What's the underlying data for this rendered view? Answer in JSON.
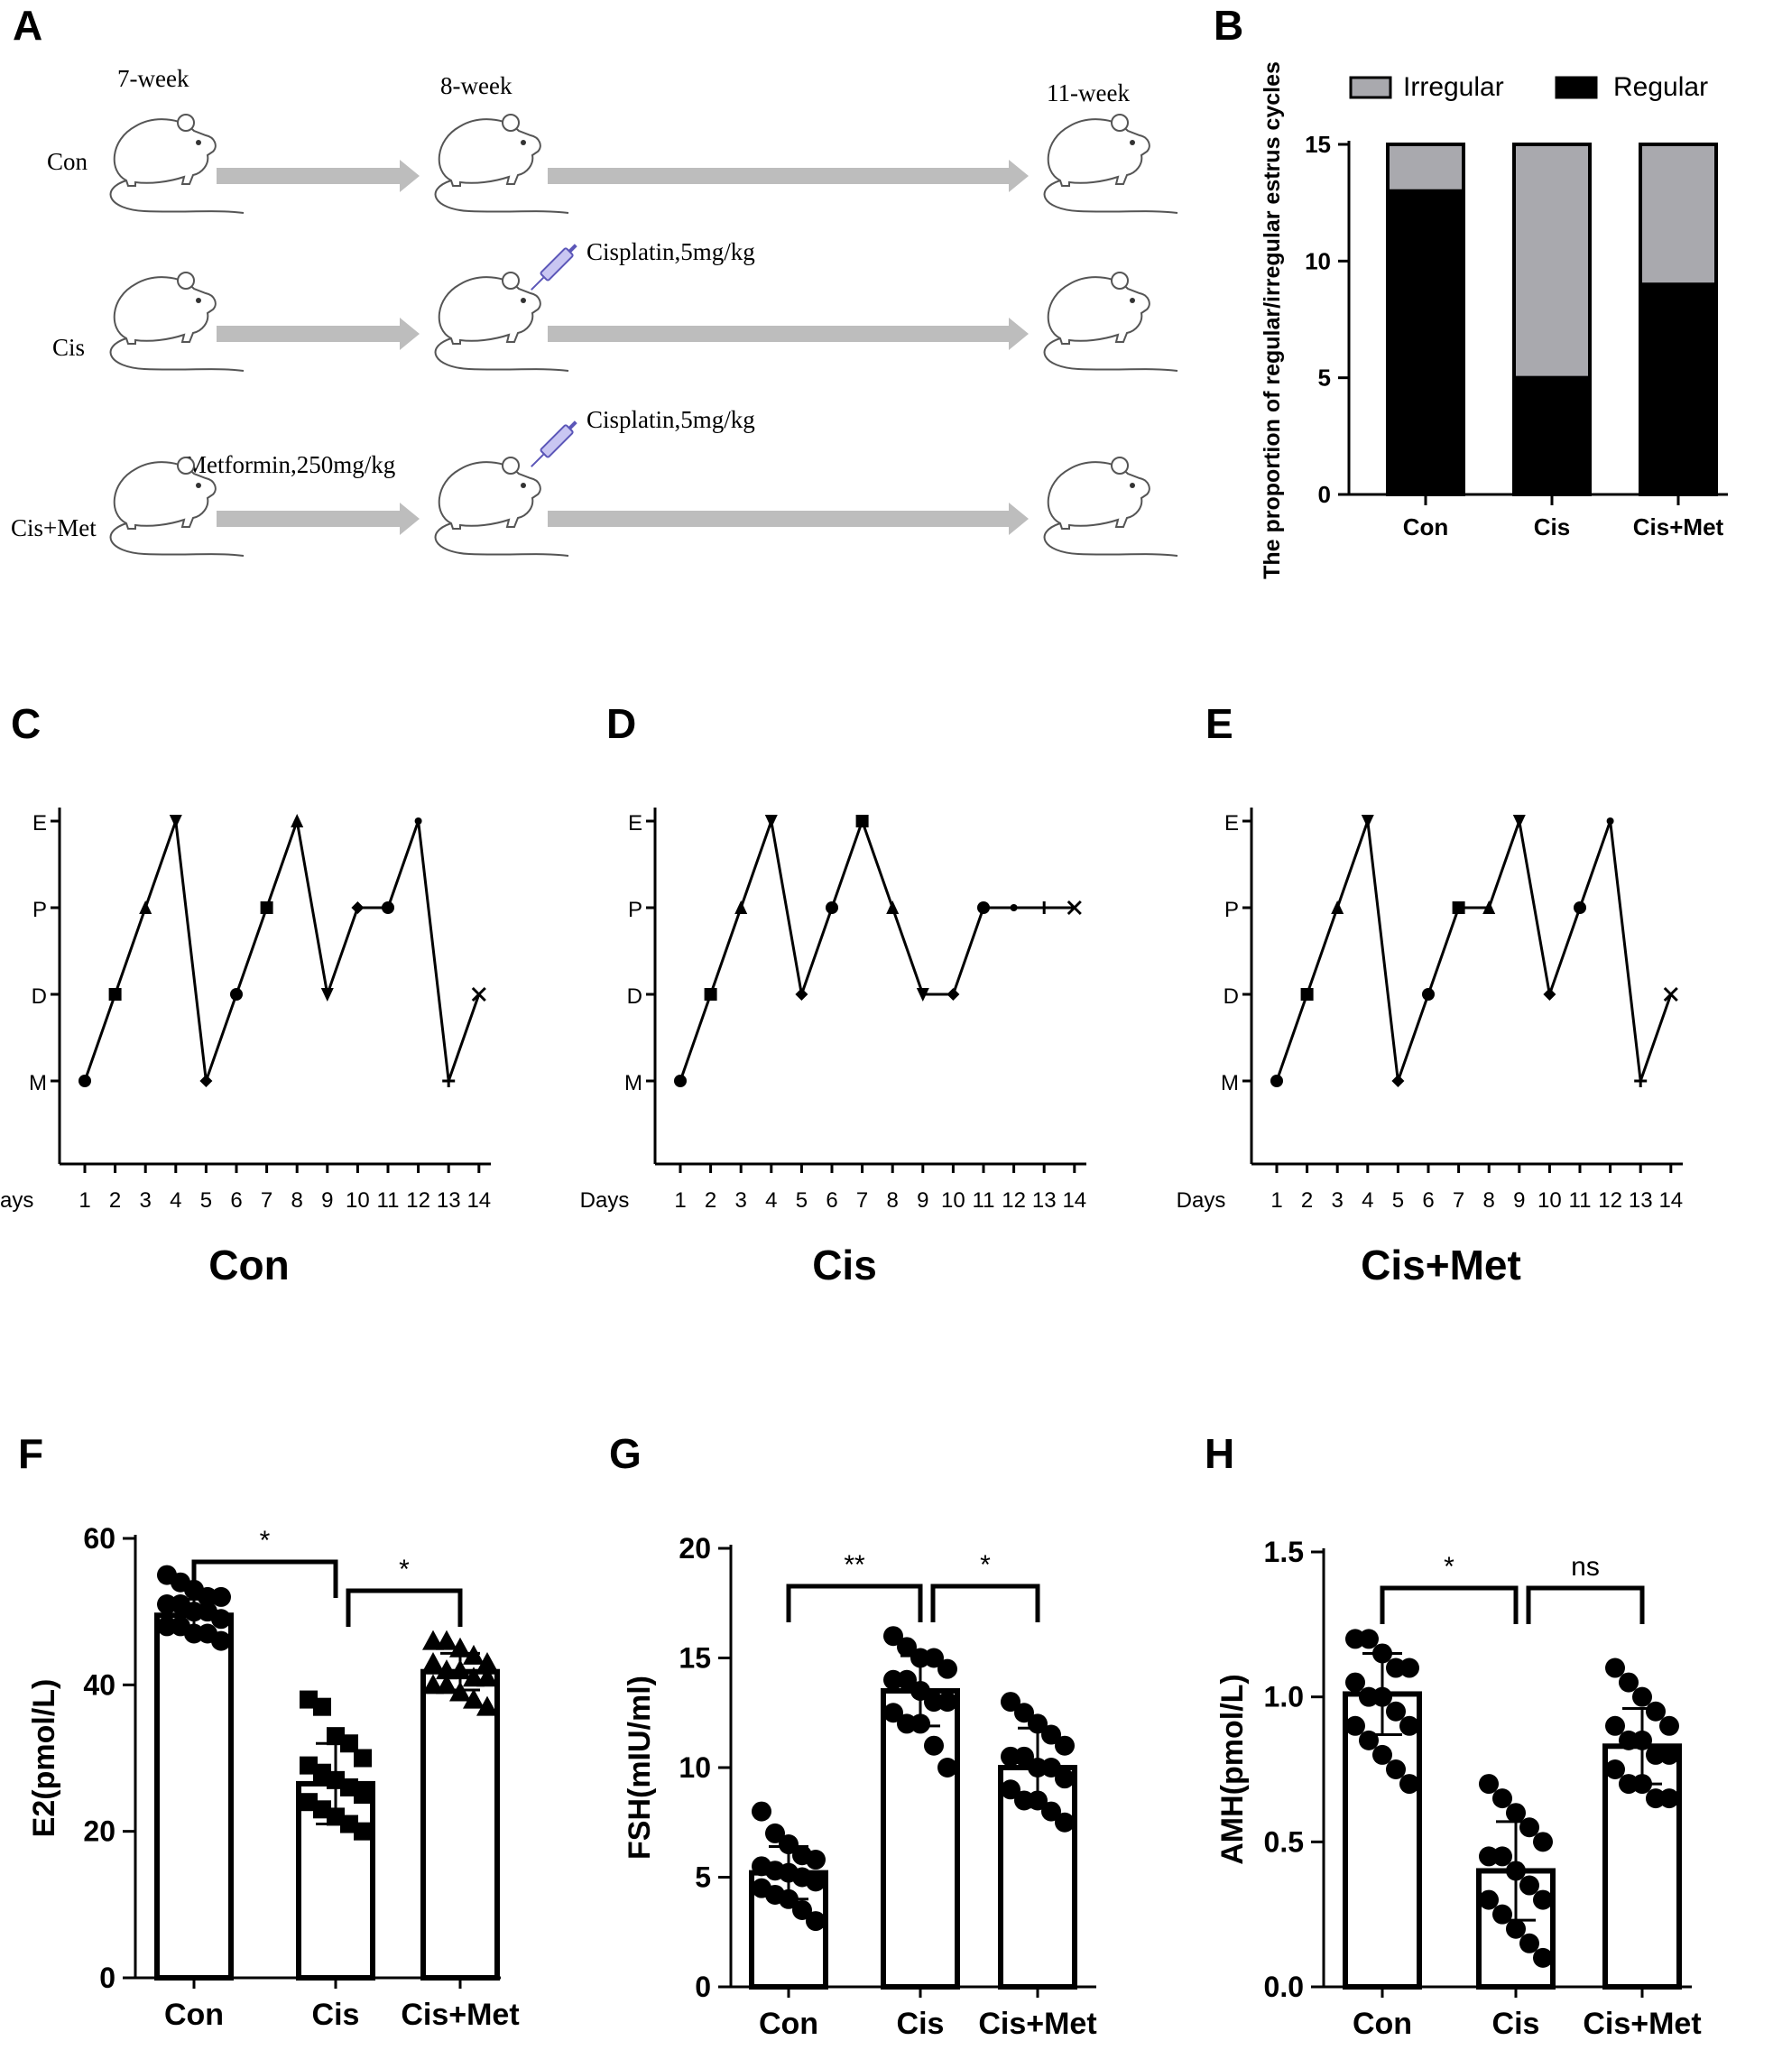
{
  "panels": {
    "A": "A",
    "B": "B",
    "C": "C",
    "D": "D",
    "E": "E",
    "F": "F",
    "G": "G",
    "H": "H"
  },
  "schematic": {
    "week_labels": [
      "7-week",
      "8-week",
      "11-week"
    ],
    "groups": [
      "Con",
      "Cis",
      "Cis+Met"
    ],
    "cisplatin_label": "Cisplatin,5mg/kg",
    "metformin_label": "Metformin,250mg/kg",
    "arrow_color": "#bdbdbd"
  },
  "chart_data": [
    {
      "id": "B",
      "type": "bar",
      "stacked": true,
      "categories": [
        "Con",
        "Cis",
        "Cis+Met"
      ],
      "series": [
        {
          "name": "Irregular",
          "color": "#a9a9ae",
          "values": [
            2,
            10,
            6
          ]
        },
        {
          "name": "Regular",
          "color": "#000000",
          "values": [
            13,
            5,
            9
          ]
        }
      ],
      "ylabel": "The proportion of regular/irregular estrus cycles",
      "ylim": [
        0,
        15
      ],
      "yticks": [
        0,
        5,
        10,
        15
      ],
      "legend": "top"
    },
    {
      "id": "C",
      "type": "line",
      "title": "Con",
      "xlabel": "Days",
      "x": [
        1,
        2,
        3,
        4,
        5,
        6,
        7,
        8,
        9,
        10,
        11,
        12,
        13,
        14
      ],
      "y": [
        0,
        1,
        2,
        3,
        0,
        1,
        2,
        3,
        1,
        2,
        2,
        3,
        0,
        1
      ],
      "yticklabels": [
        "M",
        "D",
        "P",
        "E"
      ]
    },
    {
      "id": "D",
      "type": "line",
      "title": "Cis",
      "xlabel": "Days",
      "x": [
        1,
        2,
        3,
        4,
        5,
        6,
        7,
        8,
        9,
        10,
        11,
        12,
        13,
        14
      ],
      "y": [
        0,
        1,
        2,
        3,
        1,
        2,
        3,
        2,
        1,
        1,
        2,
        2,
        2,
        2
      ],
      "yticklabels": [
        "M",
        "D",
        "P",
        "E"
      ]
    },
    {
      "id": "E",
      "type": "line",
      "title": "Cis+Met",
      "xlabel": "Days",
      "x": [
        1,
        2,
        3,
        4,
        5,
        6,
        7,
        8,
        9,
        10,
        11,
        12,
        13,
        14
      ],
      "y": [
        0,
        1,
        2,
        3,
        0,
        1,
        2,
        2,
        3,
        1,
        2,
        3,
        0,
        1
      ],
      "yticklabels": [
        "M",
        "D",
        "P",
        "E"
      ]
    },
    {
      "id": "F",
      "type": "bar",
      "categories": [
        "Con",
        "Cis",
        "Cis+Met"
      ],
      "means": [
        49.5,
        26.5,
        41.8
      ],
      "sd": [
        2.2,
        5.5,
        2.5
      ],
      "points": [
        [
          55,
          54,
          53,
          52,
          52,
          51,
          51,
          50,
          50,
          49,
          48,
          48,
          47,
          47,
          46
        ],
        [
          38,
          37,
          33,
          32,
          30,
          29,
          28,
          27,
          26,
          25,
          24,
          23,
          22,
          21,
          20
        ],
        [
          46,
          46,
          45,
          44,
          43,
          43,
          42,
          42,
          41,
          41,
          40,
          40,
          39,
          38,
          37
        ]
      ],
      "marker": [
        "circle",
        "square",
        "triangle"
      ],
      "ylabel": "E2(pmol/L)",
      "ylim": [
        0,
        60
      ],
      "yticks": [
        0,
        20,
        40,
        60
      ],
      "significance": [
        {
          "between": [
            "Con",
            "Cis"
          ],
          "label": "*"
        },
        {
          "between": [
            "Cis",
            "Cis+Met"
          ],
          "label": "*"
        }
      ]
    },
    {
      "id": "G",
      "type": "bar",
      "categories": [
        "Con",
        "Cis",
        "Cis+Met"
      ],
      "means": [
        5.2,
        13.5,
        10.0
      ],
      "sd": [
        1.2,
        1.6,
        1.8
      ],
      "points": [
        [
          8,
          7,
          6.5,
          6,
          5.8,
          5.5,
          5.3,
          5.2,
          5,
          4.8,
          4.5,
          4.2,
          4,
          3.5,
          3
        ],
        [
          16,
          15.5,
          15,
          15,
          14.5,
          14,
          14,
          13.5,
          13,
          13,
          12.5,
          12,
          12,
          11,
          10
        ],
        [
          13,
          12.5,
          12,
          11.5,
          11,
          10.5,
          10.5,
          10,
          10,
          9.5,
          9,
          8.5,
          8.5,
          8,
          7.5
        ]
      ],
      "marker": [
        "circle",
        "circle",
        "circle"
      ],
      "ylabel": "FSH(mIU/ml)",
      "ylim": [
        0,
        20
      ],
      "yticks": [
        0,
        5,
        10,
        15,
        20
      ],
      "significance": [
        {
          "between": [
            "Con",
            "Cis"
          ],
          "label": "**"
        },
        {
          "between": [
            "Cis",
            "Cis+Met"
          ],
          "label": "*"
        }
      ]
    },
    {
      "id": "H",
      "type": "bar",
      "categories": [
        "Con",
        "Cis",
        "Cis+Met"
      ],
      "means": [
        1.01,
        0.4,
        0.83
      ],
      "sd": [
        0.14,
        0.17,
        0.13
      ],
      "points": [
        [
          1.2,
          1.2,
          1.15,
          1.1,
          1.1,
          1.05,
          1.0,
          1.0,
          0.95,
          0.9,
          0.9,
          0.85,
          0.8,
          0.75,
          0.7
        ],
        [
          0.7,
          0.65,
          0.6,
          0.55,
          0.5,
          0.45,
          0.45,
          0.4,
          0.35,
          0.3,
          0.3,
          0.25,
          0.2,
          0.15,
          0.1
        ],
        [
          1.1,
          1.05,
          1.0,
          0.95,
          0.9,
          0.9,
          0.85,
          0.85,
          0.8,
          0.8,
          0.75,
          0.7,
          0.7,
          0.65,
          0.65
        ]
      ],
      "marker": [
        "circle",
        "circle",
        "circle"
      ],
      "ylabel": "AMH(pmol/L)",
      "ylim": [
        0,
        1.5
      ],
      "yticks": [
        "0.0",
        "0.5",
        "1.0",
        "1.5"
      ],
      "significance": [
        {
          "between": [
            "Con",
            "Cis"
          ],
          "label": "*"
        },
        {
          "between": [
            "Cis",
            "Cis+Met"
          ],
          "label": "ns"
        }
      ]
    }
  ]
}
